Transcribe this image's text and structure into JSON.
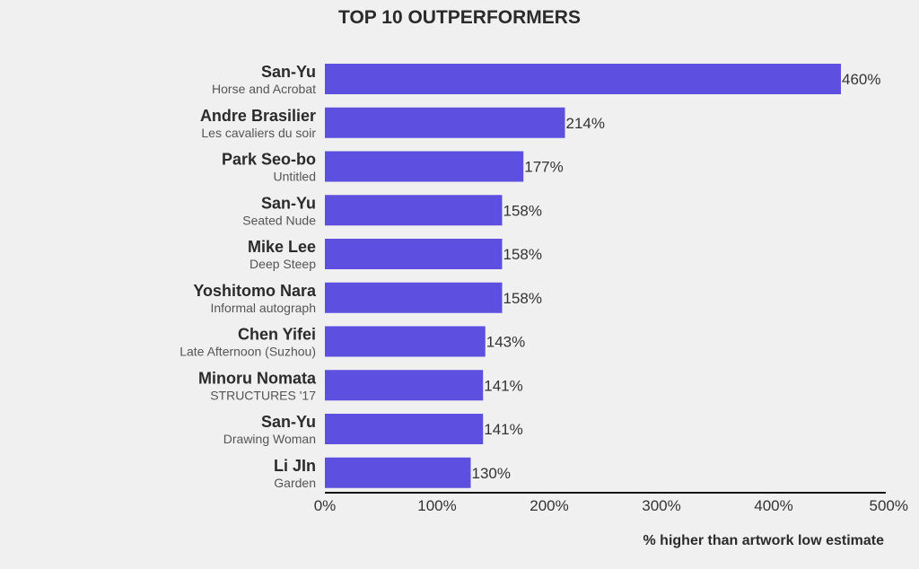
{
  "chart_data": {
    "type": "bar",
    "orientation": "horizontal",
    "title": "TOP 10 OUTPERFORMERS",
    "xlabel": "% higher than artwork low estimate",
    "ylabel": "",
    "xlim": [
      0,
      500
    ],
    "xticks": [
      "0%",
      "100%",
      "200%",
      "300%",
      "400%",
      "500%"
    ],
    "grid": false,
    "bar_color": "#5d50e0",
    "categories": [
      {
        "artist": "San-Yu",
        "artwork": "Horse and Acrobat"
      },
      {
        "artist": "Andre Brasilier",
        "artwork": "Les cavaliers du soir"
      },
      {
        "artist": "Park Seo-bo",
        "artwork": "Untitled"
      },
      {
        "artist": "San-Yu",
        "artwork": "Seated Nude"
      },
      {
        "artist": "Mike Lee",
        "artwork": "Deep Steep"
      },
      {
        "artist": "Yoshitomo Nara",
        "artwork": "Informal autograph"
      },
      {
        "artist": "Chen Yifei",
        "artwork": "Late Afternoon (Suzhou)"
      },
      {
        "artist": "Minoru Nomata",
        "artwork": "STRUCTURES '17"
      },
      {
        "artist": "San-Yu",
        "artwork": "Drawing Woman"
      },
      {
        "artist": "Li JIn",
        "artwork": "Garden"
      }
    ],
    "values": [
      460,
      214,
      177,
      158,
      158,
      158,
      143,
      141,
      141,
      130
    ],
    "value_labels": [
      "460%",
      "214%",
      "177%",
      "158%",
      "158%",
      "158%",
      "143%",
      "141%",
      "141%",
      "130%"
    ]
  }
}
